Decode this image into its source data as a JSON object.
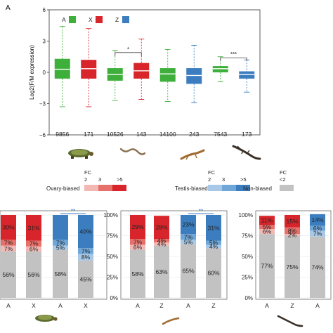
{
  "panel_label": "A",
  "chart_data": [
    {
      "type": "box",
      "ylabel": "Log2(F/M expression)",
      "yticks": [
        -6,
        -3,
        0,
        3,
        6
      ],
      "ylim": [
        -6,
        6
      ],
      "grid": false,
      "legend": [
        {
          "label": "A",
          "color": "#3daf3a"
        },
        {
          "label": "X",
          "color": "#d8252b"
        },
        {
          "label": "Z",
          "color": "#3b7dbf"
        }
      ],
      "boxes": [
        {
          "color": "#3daf3a",
          "q1": -0.6,
          "median": 0.3,
          "q3": 1.3,
          "wlow": -3.3,
          "whigh": 4.4,
          "count": "9856"
        },
        {
          "color": "#d8252b",
          "q1": -0.6,
          "median": 0.35,
          "q3": 1.2,
          "wlow": -3.3,
          "whigh": 4.2,
          "count": "171"
        },
        {
          "color": "#3daf3a",
          "q1": -0.8,
          "median": -0.2,
          "q3": 0.4,
          "wlow": -2.7,
          "whigh": 2.1,
          "count": "10526"
        },
        {
          "color": "#d8252b",
          "q1": -0.6,
          "median": 0.15,
          "q3": 0.9,
          "wlow": -2.6,
          "whigh": 3.2,
          "count": "143"
        },
        {
          "color": "#3daf3a",
          "q1": -0.9,
          "median": -0.15,
          "q3": 0.4,
          "wlow": -2.8,
          "whigh": 2.2,
          "count": "14100"
        },
        {
          "color": "#3b7dbf",
          "q1": -1.1,
          "median": -0.3,
          "q3": 0.4,
          "wlow": -2.9,
          "whigh": 2.6,
          "count": "243"
        },
        {
          "color": "#3daf3a",
          "q1": 0.0,
          "median": 0.35,
          "q3": 0.6,
          "wlow": -0.9,
          "whigh": 1.5,
          "count": "7543"
        },
        {
          "color": "#3b7dbf",
          "q1": -0.6,
          "median": -0.2,
          "q3": 0.1,
          "wlow": -1.9,
          "whigh": 1.2,
          "count": "173"
        }
      ],
      "significance": [
        {
          "from": 2,
          "to": 3,
          "y": 1.9,
          "label": "*"
        },
        {
          "from": 6,
          "to": 7,
          "y": 1.4,
          "label": "***"
        }
      ]
    },
    {
      "type": "stacked_bar",
      "categories": [
        "A",
        "X",
        "A",
        "X"
      ],
      "yticks": [],
      "segments": [
        {
          "name": "non-biased",
          "color": "#c2c2c2",
          "values": [
            56,
            56,
            58,
            45
          ]
        },
        {
          "name": "ovary-fc2",
          "color": "#f2b8b4",
          "values": [
            7,
            6,
            0,
            0
          ]
        },
        {
          "name": "ovary-fc3",
          "color": "#e8706a",
          "values": [
            7,
            7,
            0,
            0
          ]
        },
        {
          "name": "ovary-fc5",
          "color": "#d8252b",
          "values": [
            30,
            31,
            0,
            0
          ]
        },
        {
          "name": "testis-fc2",
          "color": "#a7c8e6",
          "values": [
            0,
            0,
            5,
            8
          ]
        },
        {
          "name": "testis-fc3",
          "color": "#6fa6d8",
          "values": [
            0,
            0,
            7,
            7
          ]
        },
        {
          "name": "testis-fc5",
          "color": "#3b7dbf",
          "values": [
            0,
            0,
            30,
            40
          ]
        }
      ],
      "labels": [
        [
          "56%",
          "7%",
          "7%",
          "30%"
        ],
        [
          "56%",
          "6%",
          "7%",
          "31%"
        ],
        [
          "58%",
          "5%",
          "7%",
          ""
        ],
        [
          "45%",
          "8%",
          "7%",
          "40%"
        ]
      ],
      "significance": {
        "from": 2,
        "to": 3,
        "label": "**"
      }
    },
    {
      "type": "stacked_bar",
      "categories": [
        "A",
        "Z",
        "A",
        "Z"
      ],
      "yticks": [
        "100%",
        "75%",
        "50%",
        "25%",
        "0%"
      ],
      "segments": [
        {
          "name": "non-biased",
          "color": "#c2c2c2",
          "values": [
            58,
            63,
            65,
            60
          ]
        },
        {
          "name": "ovary-fc2",
          "color": "#f2b8b4",
          "values": [
            6,
            4,
            0,
            0
          ]
        },
        {
          "name": "ovary-fc3",
          "color": "#e8706a",
          "values": [
            7,
            4,
            0,
            0
          ]
        },
        {
          "name": "ovary-fc5",
          "color": "#d8252b",
          "values": [
            29,
            28,
            0,
            0
          ]
        },
        {
          "name": "testis-fc2",
          "color": "#a7c8e6",
          "values": [
            0,
            0,
            5,
            4
          ]
        },
        {
          "name": "testis-fc3",
          "color": "#6fa6d8",
          "values": [
            0,
            0,
            7,
            5
          ]
        },
        {
          "name": "testis-fc5",
          "color": "#3b7dbf",
          "values": [
            0,
            0,
            23,
            31
          ]
        }
      ],
      "labels": [
        [
          "58%",
          "6%",
          "7%",
          "29%"
        ],
        [
          "63%",
          "4%",
          "4%",
          "28%"
        ],
        [
          "65%",
          "5%",
          "7%",
          "23%"
        ],
        [
          "60%",
          "4%",
          "5%",
          "31%"
        ]
      ],
      "significance": {
        "from": 2,
        "to": 3,
        "label": "**"
      }
    },
    {
      "type": "stacked_bar",
      "categories": [
        "A",
        "Z",
        "A"
      ],
      "yticks": [
        "100%",
        "75%",
        "50%",
        "25%",
        "0%"
      ],
      "segments": [
        {
          "name": "non-biased",
          "color": "#c2c2c2",
          "values": [
            77,
            75,
            74
          ]
        },
        {
          "name": "ovary-fc2",
          "color": "#f2b8b4",
          "values": [
            6,
            2,
            0
          ]
        },
        {
          "name": "ovary-fc3",
          "color": "#e8706a",
          "values": [
            5,
            8,
            0
          ]
        },
        {
          "name": "ovary-fc5",
          "color": "#d8252b",
          "values": [
            11,
            15,
            0
          ]
        },
        {
          "name": "testis-fc2",
          "color": "#a7c8e6",
          "values": [
            0,
            0,
            7
          ]
        },
        {
          "name": "testis-fc3",
          "color": "#6fa6d8",
          "values": [
            0,
            0,
            6
          ]
        },
        {
          "name": "testis-fc5",
          "color": "#3b7dbf",
          "values": [
            0,
            0,
            14
          ]
        }
      ],
      "labels": [
        [
          "77%",
          "6%",
          "5%",
          "11%"
        ],
        [
          "75%",
          "2%",
          "8%",
          "15%"
        ],
        [
          "74%",
          "7%",
          "6%",
          "14%"
        ]
      ]
    }
  ],
  "fc_legend": {
    "ovary": {
      "label": "Ovary-biased",
      "fc": "FC",
      "ticks": [
        "2",
        "3",
        ">5"
      ],
      "colors": [
        "#f2b8b4",
        "#e8706a",
        "#d8252b"
      ]
    },
    "testis": {
      "label": "Testis-biased",
      "fc": "FC",
      "ticks": [
        "2",
        "3",
        ">5"
      ],
      "colors": [
        "#a7c8e6",
        "#6fa6d8",
        "#3b7dbf"
      ]
    },
    "nonbiased": {
      "label": "Non-biased",
      "fc": "FC",
      "tick": "<2",
      "color": "#c2c2c2"
    }
  },
  "icons": [
    "turtle-icon",
    "snake-icon",
    "lizard-icon",
    "gecko-icon"
  ]
}
